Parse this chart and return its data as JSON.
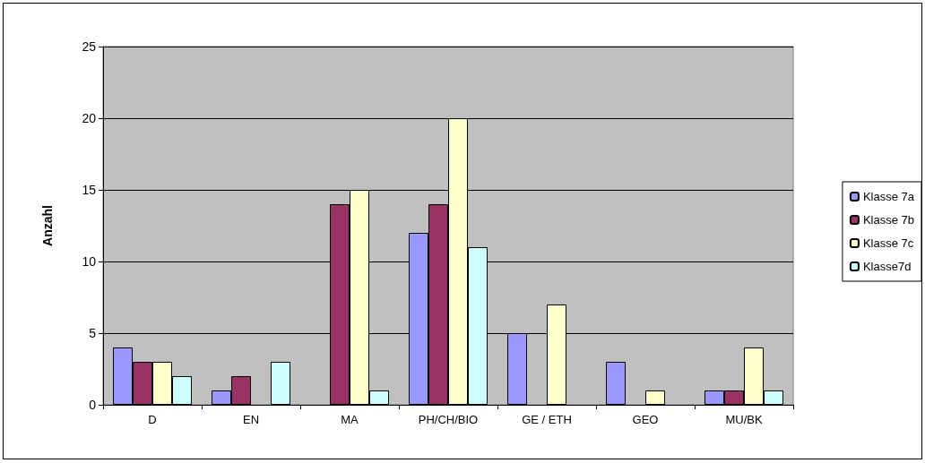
{
  "chart_data": {
    "type": "bar",
    "ylabel": "Anzahl",
    "categories": [
      "D",
      "EN",
      "MA",
      "PH/CH/BIO",
      "GE / ETH",
      "GEO",
      "MU/BK"
    ],
    "series": [
      {
        "name": "Klasse 7a",
        "color": "#9999ff",
        "values": [
          4,
          1,
          0,
          12,
          5,
          3,
          1
        ]
      },
      {
        "name": "Klasse 7b",
        "color": "#993366",
        "values": [
          3,
          2,
          14,
          14,
          0,
          0,
          1
        ]
      },
      {
        "name": "Klasse 7c",
        "color": "#ffffcc",
        "values": [
          3,
          0,
          15,
          20,
          7,
          1,
          4
        ]
      },
      {
        "name": "Klasse7d",
        "color": "#ccffff",
        "values": [
          2,
          3,
          1,
          11,
          0,
          0,
          1
        ]
      }
    ],
    "ylim": [
      0,
      25
    ],
    "yticks": [
      0,
      5,
      10,
      15,
      20,
      25
    ],
    "grid": "y",
    "legend": "right"
  }
}
